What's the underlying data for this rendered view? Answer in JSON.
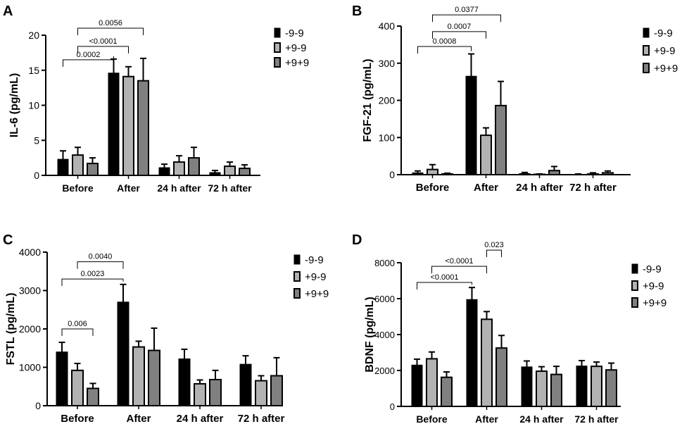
{
  "figure": {
    "colors": {
      "black": "#000000",
      "light_gray": "#b2b2b2",
      "dark_gray": "#808080",
      "stroke": "#000000"
    }
  },
  "chart_data": [
    {
      "type": "bar",
      "panel_label": "A",
      "ylabel": "IL-6 (pg/mL)",
      "ylim": [
        0,
        20
      ],
      "yticks": [
        0,
        5,
        10,
        15,
        20
      ],
      "categories": [
        "Before",
        "After",
        "24 h after",
        "72 h after"
      ],
      "series": [
        {
          "name": "-9-9",
          "values": [
            2.3,
            14.6,
            1.1,
            0.4
          ],
          "errors": [
            1.2,
            2.0,
            0.5,
            0.3
          ]
        },
        {
          "name": "+9-9",
          "values": [
            2.9,
            14.1,
            1.9,
            1.3
          ],
          "errors": [
            1.1,
            1.4,
            0.9,
            0.6
          ]
        },
        {
          "name": "+9+9",
          "values": [
            1.7,
            13.5,
            2.5,
            1.0
          ],
          "errors": [
            0.8,
            3.2,
            1.5,
            0.5
          ]
        }
      ],
      "annotations": [
        {
          "text": "0.0002",
          "from": [
            0,
            0
          ],
          "to": [
            1,
            0
          ],
          "level": 16.5
        },
        {
          "text": "<0.0001",
          "from": [
            0,
            1
          ],
          "to": [
            1,
            1
          ],
          "level": 18.4
        },
        {
          "text": "0.0056",
          "from": [
            0,
            1
          ],
          "to": [
            1,
            2
          ],
          "level": 21.0
        }
      ]
    },
    {
      "type": "bar",
      "panel_label": "B",
      "ylabel": "FGF-21 (pg/mL)",
      "ylim": [
        0,
        400
      ],
      "yticks": [
        0,
        100,
        200,
        300,
        400
      ],
      "categories": [
        "Before",
        "After",
        "24 h after",
        "72 h after"
      ],
      "series": [
        {
          "name": "-9-9",
          "values": [
            5,
            265,
            3,
            1
          ],
          "errors": [
            5,
            60,
            3,
            1
          ]
        },
        {
          "name": "+9-9",
          "values": [
            14,
            106,
            1,
            2
          ],
          "errors": [
            13,
            20,
            1,
            3
          ]
        },
        {
          "name": "+9+9",
          "values": [
            2,
            186,
            11,
            5
          ],
          "errors": [
            2,
            65,
            11,
            5
          ]
        }
      ],
      "annotations": [
        {
          "text": "0.0008",
          "from": [
            0,
            0
          ],
          "to": [
            1,
            0
          ],
          "level": 345
        },
        {
          "text": "0.0007",
          "from": [
            0,
            1
          ],
          "to": [
            1,
            1
          ],
          "level": 385
        },
        {
          "text": "0.0377",
          "from": [
            0,
            1
          ],
          "to": [
            1,
            2
          ],
          "level": 430
        }
      ]
    },
    {
      "type": "bar",
      "panel_label": "C",
      "ylabel": "FSTL (pg/mL)",
      "ylim": [
        0,
        4000
      ],
      "yticks": [
        0,
        1000,
        2000,
        3000,
        4000
      ],
      "categories": [
        "Before",
        "After",
        "24 h after",
        "72 h after"
      ],
      "series": [
        {
          "name": "-9-9",
          "values": [
            1400,
            2700,
            1220,
            1080
          ],
          "errors": [
            250,
            460,
            250,
            220
          ]
        },
        {
          "name": "+9-9",
          "values": [
            920,
            1530,
            570,
            650
          ],
          "errors": [
            180,
            150,
            100,
            130
          ]
        },
        {
          "name": "+9+9",
          "values": [
            450,
            1440,
            680,
            780
          ],
          "errors": [
            130,
            580,
            240,
            470
          ]
        }
      ],
      "annotations": [
        {
          "text": "0.006",
          "from": [
            0,
            0
          ],
          "to": [
            0,
            2
          ],
          "level": 2000
        },
        {
          "text": "0.0023",
          "from": [
            0,
            0
          ],
          "to": [
            1,
            0
          ],
          "level": 3300
        },
        {
          "text": "0.0040",
          "from": [
            0,
            1
          ],
          "to": [
            1,
            0
          ],
          "level": 3750
        }
      ]
    },
    {
      "type": "bar",
      "panel_label": "D",
      "ylabel": "BDNF (pg/mL)",
      "ylim": [
        0,
        8000
      ],
      "yticks": [
        0,
        2000,
        4000,
        6000,
        8000
      ],
      "categories": [
        "Before",
        "After",
        "24 h after",
        "72 h after"
      ],
      "series": [
        {
          "name": "-9-9",
          "values": [
            2300,
            5950,
            2200,
            2250
          ],
          "errors": [
            330,
            670,
            330,
            300
          ]
        },
        {
          "name": "+9-9",
          "values": [
            2650,
            4850,
            1960,
            2230
          ],
          "errors": [
            380,
            430,
            250,
            240
          ]
        },
        {
          "name": "+9+9",
          "values": [
            1620,
            3250,
            1780,
            2030
          ],
          "errors": [
            300,
            700,
            450,
            380
          ]
        }
      ],
      "annotations": [
        {
          "text": "<0.0001",
          "from": [
            0,
            0
          ],
          "to": [
            1,
            0
          ],
          "level": 6900
        },
        {
          "text": "<0.0001",
          "from": [
            0,
            1
          ],
          "to": [
            1,
            1
          ],
          "level": 7800
        },
        {
          "text": "0.023",
          "from": [
            1,
            1
          ],
          "to": [
            1,
            2
          ],
          "level": 8700
        }
      ]
    }
  ]
}
